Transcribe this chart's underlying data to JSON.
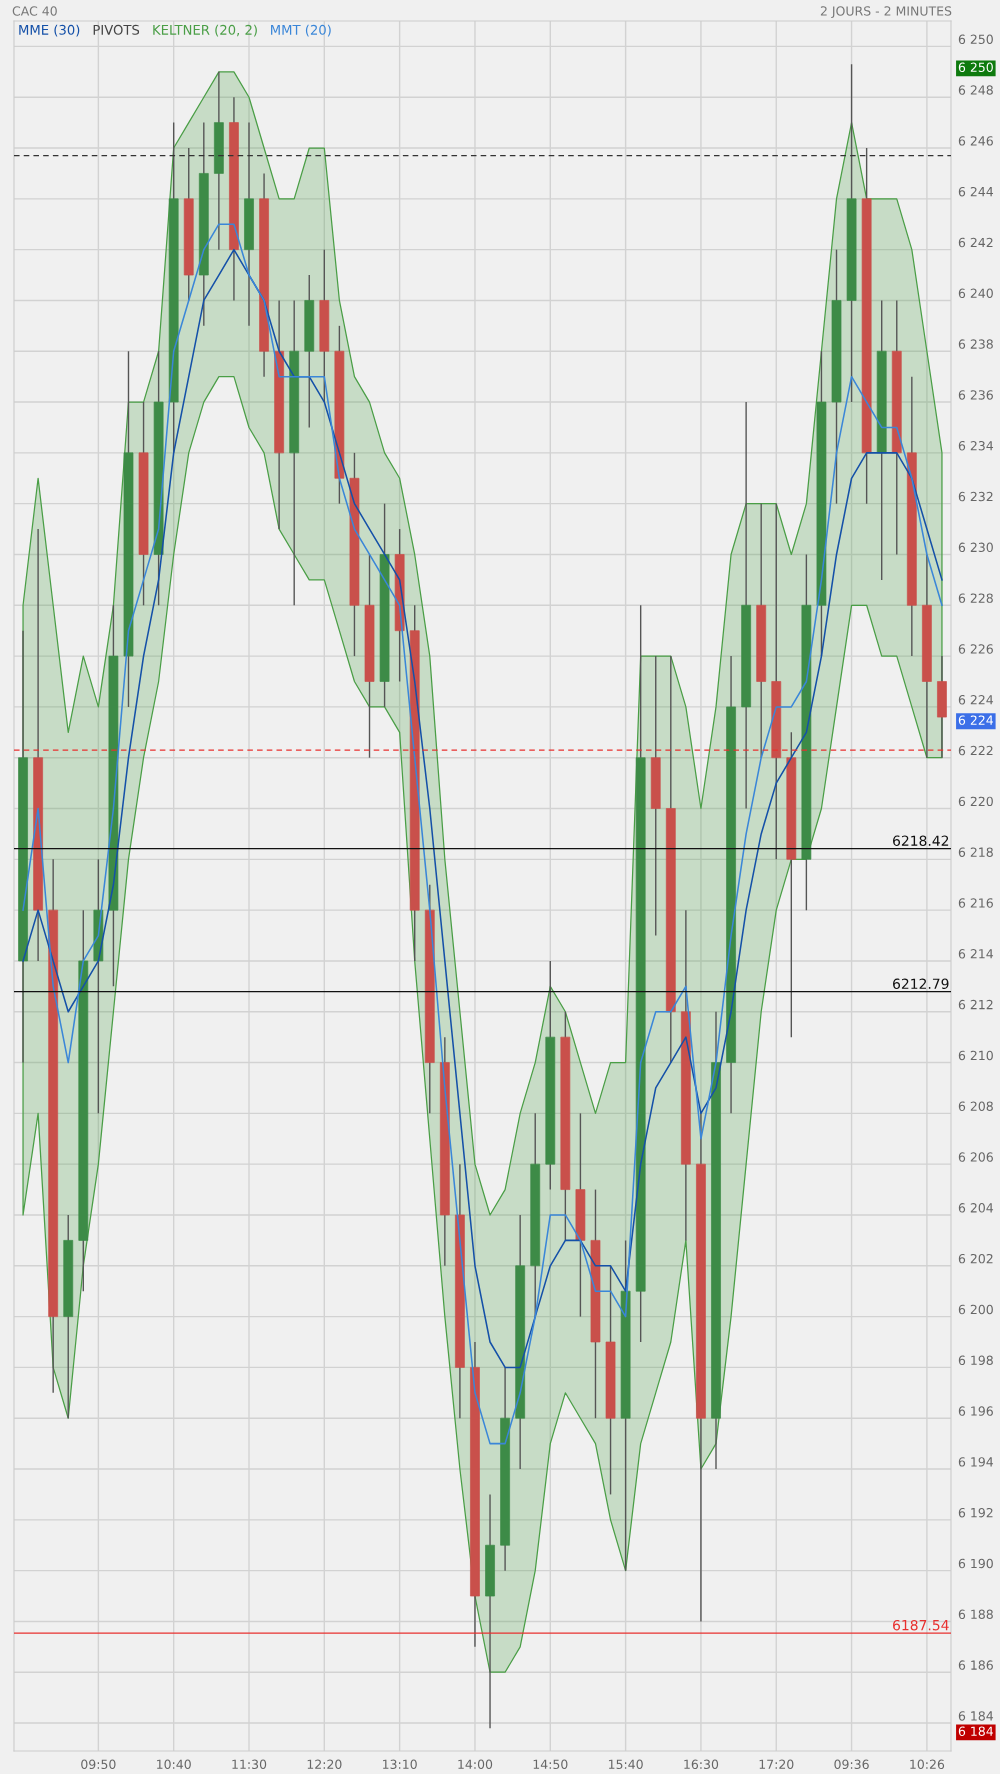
{
  "chart_data": {
    "type": "candlestick",
    "title": "CAC 40",
    "categories": [
      null,
      null,
      null,
      null,
      null,
      "09:50",
      null,
      null,
      null,
      null,
      "10:40",
      null,
      null,
      null,
      null,
      "11:30",
      null,
      null,
      null,
      null,
      "12:20",
      null,
      null,
      null,
      null,
      "13:10",
      null,
      null,
      null,
      null,
      "14:00",
      null,
      null,
      null,
      null,
      "14:50",
      null,
      null,
      null,
      null,
      "15:40",
      null,
      null,
      null,
      null,
      "16:30",
      null,
      null,
      null,
      null,
      "17:20",
      null,
      null,
      null,
      null,
      "09:36",
      null,
      null,
      null,
      null,
      "10:26",
      null
    ],
    "ohlc": [
      [
        6214,
        6227,
        6210,
        6222
      ],
      [
        6222,
        6231,
        6214,
        6216
      ],
      [
        6216,
        6218,
        6197,
        6200
      ],
      [
        6200,
        6204,
        6196,
        6203
      ],
      [
        6203,
        6216,
        6201,
        6214
      ],
      [
        6214,
        6218,
        6208,
        6216
      ],
      [
        6216,
        6228,
        6213,
        6226
      ],
      [
        6226,
        6238,
        6224,
        6234
      ],
      [
        6234,
        6236,
        6228,
        6230
      ],
      [
        6230,
        6238,
        6228,
        6236
      ],
      [
        6236,
        6247,
        6234,
        6244
      ],
      [
        6244,
        6246,
        6240,
        6241
      ],
      [
        6241,
        6247,
        6239,
        6245
      ],
      [
        6245,
        6249,
        6242,
        6247
      ],
      [
        6247,
        6248,
        6240,
        6242
      ],
      [
        6242,
        6247,
        6239,
        6244
      ],
      [
        6244,
        6245,
        6237,
        6238
      ],
      [
        6238,
        6240,
        6231,
        6234
      ],
      [
        6234,
        6240,
        6228,
        6238
      ],
      [
        6238,
        6241,
        6235,
        6240
      ],
      [
        6240,
        6242,
        6236,
        6238
      ],
      [
        6238,
        6239,
        6232,
        6233
      ],
      [
        6233,
        6234,
        6226,
        6228
      ],
      [
        6228,
        6230,
        6222,
        6225
      ],
      [
        6225,
        6232,
        6224,
        6230
      ],
      [
        6230,
        6231,
        6225,
        6227
      ],
      [
        6227,
        6228,
        6214,
        6216
      ],
      [
        6216,
        6217,
        6208,
        6210
      ],
      [
        6210,
        6211,
        6202,
        6204
      ],
      [
        6204,
        6206,
        6196,
        6198
      ],
      [
        6198,
        6199,
        6187,
        6189
      ],
      [
        6189,
        6193,
        6183.8,
        6191
      ],
      [
        6191,
        6198,
        6190,
        6196
      ],
      [
        6196,
        6204,
        6194,
        6202
      ],
      [
        6202,
        6208,
        6200,
        6206
      ],
      [
        6206,
        6214,
        6205,
        6211
      ],
      [
        6211,
        6212,
        6203,
        6205
      ],
      [
        6205,
        6208,
        6200,
        6203
      ],
      [
        6203,
        6205,
        6196,
        6199
      ],
      [
        6199,
        6202,
        6193,
        6196
      ],
      [
        6196,
        6203,
        6190,
        6201
      ],
      [
        6201,
        6228,
        6199,
        6222
      ],
      [
        6222,
        6226,
        6215,
        6220
      ],
      [
        6220,
        6226,
        6210,
        6212
      ],
      [
        6212,
        6216,
        6203,
        6206
      ],
      [
        6206,
        6208,
        6188,
        6196
      ],
      [
        6196,
        6212,
        6194,
        6210
      ],
      [
        6210,
        6226,
        6208,
        6224
      ],
      [
        6224,
        6236,
        6220,
        6228
      ],
      [
        6228,
        6232,
        6222,
        6225
      ],
      [
        6225,
        6232,
        6218,
        6222
      ],
      [
        6222,
        6223,
        6211,
        6218
      ],
      [
        6218,
        6230,
        6216,
        6228
      ],
      [
        6228,
        6238,
        6226,
        6236
      ],
      [
        6236,
        6242,
        6232,
        6240
      ],
      [
        6240,
        6249.3,
        6236,
        6244
      ],
      [
        6244,
        6246,
        6232,
        6234
      ],
      [
        6234,
        6240,
        6229,
        6238
      ],
      [
        6238,
        6240,
        6230,
        6234
      ],
      [
        6234,
        6237,
        6226,
        6228
      ],
      [
        6228,
        6230,
        6222,
        6225
      ],
      [
        6225,
        6226,
        6222,
        6223.6
      ]
    ],
    "colors": [
      "#3d8b47",
      "#c9504b",
      "#c9504b",
      "#3d8b47",
      "#3d8b47",
      "#3d8b47",
      "#3d8b47",
      "#3d8b47",
      "#c9504b",
      "#3d8b47",
      "#3d8b47",
      "#c9504b",
      "#3d8b47",
      "#3d8b47",
      "#c9504b",
      "#3d8b47",
      "#c9504b",
      "#c9504b",
      "#3d8b47",
      "#3d8b47",
      "#c9504b",
      "#c9504b",
      "#c9504b",
      "#c9504b",
      "#3d8b47",
      "#c9504b",
      "#c9504b",
      "#c9504b",
      "#c9504b",
      "#c9504b",
      "#c9504b",
      "#3d8b47",
      "#3d8b47",
      "#3d8b47",
      "#3d8b47",
      "#3d8b47",
      "#c9504b",
      "#c9504b",
      "#c9504b",
      "#c9504b",
      "#3d8b47",
      "#3d8b47",
      "#c9504b",
      "#c9504b",
      "#c9504b",
      "#c9504b",
      "#3d8b47",
      "#3d8b47",
      "#3d8b47",
      "#c9504b",
      "#c9504b",
      "#c9504b",
      "#3d8b47",
      "#3d8b47",
      "#3d8b47",
      "#3d8b47",
      "#c9504b",
      "#3d8b47",
      "#c9504b",
      "#c9504b",
      "#c9504b",
      "#c9504b"
    ],
    "series": [
      {
        "name": "MME (30)",
        "type": "line",
        "color": "#1450a8",
        "values": [
          6214,
          6216,
          6214,
          6212,
          6213,
          6214,
          6217,
          6222,
          6226,
          6229,
          6234,
          6237,
          6240,
          6241,
          6242,
          6241,
          6240,
          6238,
          6237,
          6237,
          6236,
          6234,
          6232,
          6231,
          6230,
          6229,
          6225,
          6220,
          6214,
          6208,
          6202,
          6199,
          6198,
          6198,
          6200,
          6202,
          6203,
          6203,
          6202,
          6202,
          6201,
          6206,
          6209,
          6210,
          6211,
          6208,
          6209,
          6212,
          6216,
          6219,
          6221,
          6222,
          6223,
          6226,
          6230,
          6233,
          6234,
          6234,
          6234,
          6233,
          6231,
          6229
        ]
      },
      {
        "name": "KELTNER (20, 2)",
        "type": "area",
        "color": "#4a9e46",
        "values": [
          null,
          null,
          null,
          null,
          null,
          null,
          null,
          null,
          null,
          null,
          null,
          null,
          null,
          null,
          null,
          null,
          null,
          null,
          null,
          null,
          null,
          null,
          null,
          null,
          null,
          null,
          null,
          null,
          null,
          null,
          null,
          null,
          null,
          null,
          null,
          null,
          null,
          null,
          null,
          null,
          null,
          null,
          null,
          null,
          null,
          null,
          null,
          null,
          null,
          null,
          null,
          null,
          null,
          null,
          null,
          null,
          null,
          null,
          null,
          null,
          null,
          null
        ],
        "upper": [
          6228,
          6233,
          6228,
          6223,
          6226,
          6224,
          6228,
          6236,
          6236,
          6238,
          6246,
          6247,
          6248,
          6249,
          6249,
          6248,
          6246,
          6244,
          6244,
          6246,
          6246,
          6240,
          6237,
          6236,
          6234,
          6233,
          6230,
          6226,
          6218,
          6212,
          6206,
          6204,
          6205,
          6208,
          6210,
          6213,
          6212,
          6210,
          6208,
          6210,
          6210,
          6226,
          6226,
          6226,
          6224,
          6220,
          6224,
          6230,
          6232,
          6232,
          6232,
          6230,
          6232,
          6238,
          6244,
          6247,
          6244,
          6244,
          6244,
          6242,
          6238,
          6234
        ],
        "lower": [
          6204,
          6208,
          6198,
          6196,
          6202,
          6206,
          6212,
          6218,
          6222,
          6225,
          6230,
          6234,
          6236,
          6237,
          6237,
          6235,
          6234,
          6231,
          6230,
          6229,
          6229,
          6227,
          6225,
          6224,
          6224,
          6223,
          6214,
          6207,
          6200,
          6194,
          6189,
          6186,
          6186,
          6187,
          6190,
          6195,
          6197,
          6196,
          6195,
          6192,
          6190,
          6195,
          6197,
          6199,
          6203,
          6194,
          6195,
          6200,
          6206,
          6212,
          6216,
          6218,
          6218,
          6220,
          6224,
          6228,
          6228,
          6226,
          6226,
          6224,
          6222,
          6222
        ]
      },
      {
        "name": "MMT (20)",
        "type": "line",
        "color": "#3a86d8",
        "values": [
          6216,
          6220,
          6213,
          6210,
          6214,
          6215,
          6220,
          6227,
          6229,
          6231,
          6238,
          6240,
          6242,
          6243,
          6243,
          6241,
          6240,
          6237,
          6237,
          6237,
          6237,
          6233,
          6231,
          6230,
          6229,
          6228,
          6222,
          6216,
          6209,
          6203,
          6197,
          6195,
          6195,
          6197,
          6200,
          6204,
          6204,
          6203,
          6201,
          6201,
          6200,
          6210,
          6212,
          6212,
          6213,
          6207,
          6210,
          6215,
          6219,
          6222,
          6224,
          6224,
          6225,
          6229,
          6234,
          6237,
          6236,
          6235,
          6235,
          6233,
          6230,
          6228
        ]
      }
    ],
    "ylim": [
      6182.9,
      6251
    ],
    "yticks": [
      {
        "value": 6184,
        "label": "6 184"
      },
      {
        "value": 6186,
        "label": "6 186"
      },
      {
        "value": 6188,
        "label": "6 188"
      },
      {
        "value": 6190,
        "label": "6 190"
      },
      {
        "value": 6192,
        "label": "6 192"
      },
      {
        "value": 6194,
        "label": "6 194"
      },
      {
        "value": 6196,
        "label": "6 196"
      },
      {
        "value": 6198,
        "label": "6 198"
      },
      {
        "value": 6200,
        "label": "6 200"
      },
      {
        "value": 6202,
        "label": "6 202"
      },
      {
        "value": 6204,
        "label": "6 204"
      },
      {
        "value": 6206,
        "label": "6 206"
      },
      {
        "value": 6208,
        "label": "6 208"
      },
      {
        "value": 6210,
        "label": "6 210"
      },
      {
        "value": 6212,
        "label": "6 212"
      },
      {
        "value": 6214,
        "label": "6 214"
      },
      {
        "value": 6216,
        "label": "6 216"
      },
      {
        "value": 6218,
        "label": "6 218"
      },
      {
        "value": 6220,
        "label": "6 220"
      },
      {
        "value": 6222,
        "label": "6 222"
      },
      {
        "value": 6224,
        "label": "6 224"
      },
      {
        "value": 6226,
        "label": "6 226"
      },
      {
        "value": 6228,
        "label": "6 228"
      },
      {
        "value": 6230,
        "label": "6 230"
      },
      {
        "value": 6232,
        "label": "6 232"
      },
      {
        "value": 6234,
        "label": "6 234"
      },
      {
        "value": 6236,
        "label": "6 236"
      },
      {
        "value": 6238,
        "label": "6 238"
      },
      {
        "value": 6240,
        "label": "6 240"
      },
      {
        "value": 6242,
        "label": "6 242"
      },
      {
        "value": 6244,
        "label": "6 244"
      },
      {
        "value": 6246,
        "label": "6 246"
      },
      {
        "value": 6248,
        "label": "6 248"
      },
      {
        "value": 6250,
        "label": "6 250"
      }
    ],
    "ref_lines": [
      {
        "axis": "y",
        "value": 6212.79,
        "label": "6212.79",
        "color": "#111111",
        "line_style": "solid"
      },
      {
        "axis": "y",
        "value": 6218.42,
        "label": "6218.42",
        "color": "#111111",
        "line_style": "solid"
      },
      {
        "axis": "y",
        "value": 6187.54,
        "label": "6187.54",
        "color": "#e8302f",
        "line_style": "solid"
      },
      {
        "axis": "y",
        "value": 6245.7,
        "color": "#333333",
        "line_style": "dashed"
      },
      {
        "axis": "y",
        "value": 6222.3,
        "color": "#e8302f",
        "line_style": "dashed"
      }
    ],
    "annotations": [
      "2 JOURS - 2 MINUTES",
      "PIVOTS",
      "6 250",
      "6 224",
      "6 184"
    ],
    "grid": true,
    "legend": "top left"
  }
}
